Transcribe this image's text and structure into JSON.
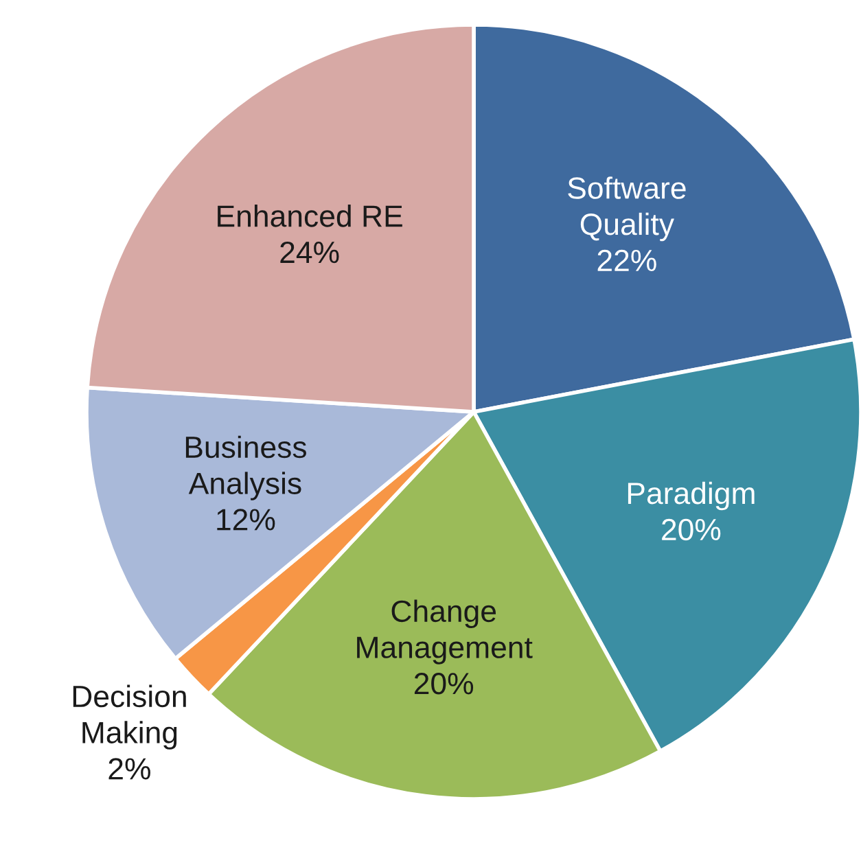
{
  "chart_data": {
    "type": "pie",
    "categories": [
      "Software\nQuality",
      "Paradigm",
      "Change\nManagement",
      "Decision\nMaking",
      "Business\nAnalysis",
      "Enhanced RE"
    ],
    "values": [
      22,
      20,
      20,
      2,
      12,
      24
    ],
    "value_labels": [
      "22%",
      "20%",
      "20%",
      "2%",
      "12%",
      "24%"
    ],
    "colors": [
      "#3f6a9e",
      "#3b8ea3",
      "#9bbb59",
      "#f79646",
      "#a9b9d9",
      "#d7a9a5"
    ],
    "legend": false
  }
}
